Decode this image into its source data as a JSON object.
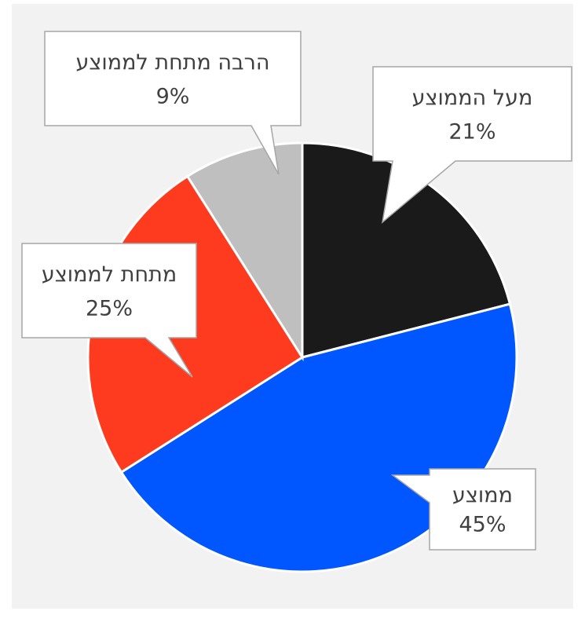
{
  "chart_data": {
    "type": "pie",
    "categories": [
      "מעל הממוצע",
      "ממוצע",
      "מתחת לממוצע",
      "הרבה מתחת לממוצע"
    ],
    "values": [
      21,
      45,
      25,
      9
    ],
    "value_labels": [
      "21%",
      "45%",
      "25%",
      "9%"
    ],
    "colors": [
      "#1a1a1a",
      "#0057ff",
      "#ff3b1f",
      "#bfbfbf"
    ]
  }
}
